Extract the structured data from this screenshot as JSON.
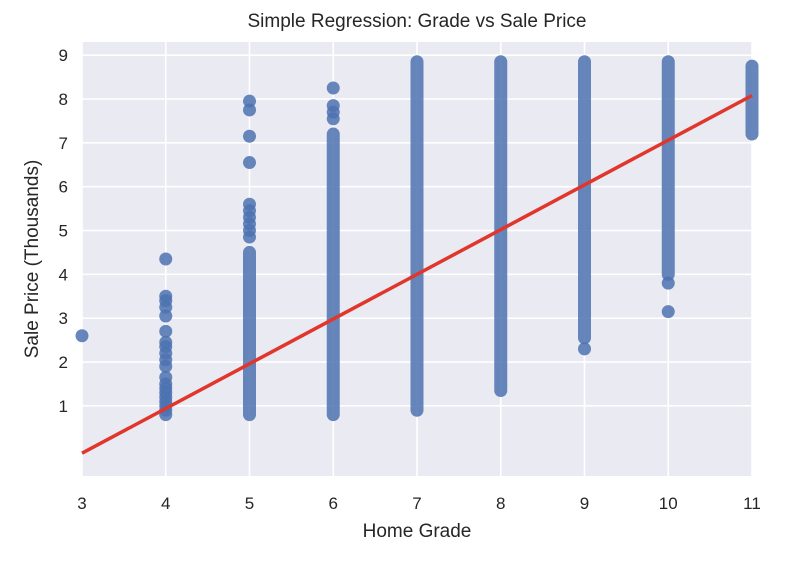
{
  "chart_data": {
    "type": "scatter",
    "title": "Simple Regression: Grade vs Sale Price",
    "xlabel": "Home Grade",
    "ylabel": "Sale Price (Thousands)",
    "xlim": [
      3,
      11
    ],
    "ylim": [
      -0.6,
      9.3
    ],
    "x_ticks": [
      3,
      4,
      5,
      6,
      7,
      8,
      9,
      10,
      11
    ],
    "y_ticks": [
      1,
      2,
      3,
      4,
      5,
      6,
      7,
      8,
      9
    ],
    "grid": true,
    "style": "seaborn-darkgrid",
    "colors": {
      "points": "#4c72b0",
      "regression": "#e0362b",
      "background": "#eaeaf2",
      "grid": "#ffffff"
    },
    "groups": [
      {
        "x": 3,
        "points": [
          2.6
        ]
      },
      {
        "x": 4,
        "points": [
          4.35,
          3.5,
          3.4,
          3.25,
          3.05,
          2.7,
          2.45,
          2.35,
          2.2,
          2.05,
          1.9,
          1.65,
          1.5,
          1.4,
          1.3,
          1.2,
          1.1,
          1.0,
          0.9,
          0.8
        ]
      },
      {
        "x": 5,
        "points": [
          7.95,
          7.75,
          7.15,
          6.55,
          5.6,
          5.45,
          5.3,
          5.15,
          5.0,
          4.85
        ],
        "range": [
          0.8,
          4.5
        ]
      },
      {
        "x": 6,
        "points": [
          8.25,
          7.85,
          7.7,
          7.55
        ],
        "range": [
          0.8,
          7.2
        ]
      },
      {
        "x": 7,
        "range": [
          0.9,
          8.85
        ]
      },
      {
        "x": 8,
        "range": [
          1.35,
          8.85
        ]
      },
      {
        "x": 9,
        "points": [
          2.3
        ],
        "range": [
          2.55,
          8.85
        ]
      },
      {
        "x": 10,
        "points": [
          3.15,
          3.8
        ],
        "range": [
          4.0,
          8.85
        ]
      },
      {
        "x": 11,
        "range": [
          7.2,
          8.75
        ]
      }
    ],
    "regression": {
      "slope": 1.02,
      "intercept": -3.14,
      "x_range": [
        3,
        11
      ]
    }
  }
}
